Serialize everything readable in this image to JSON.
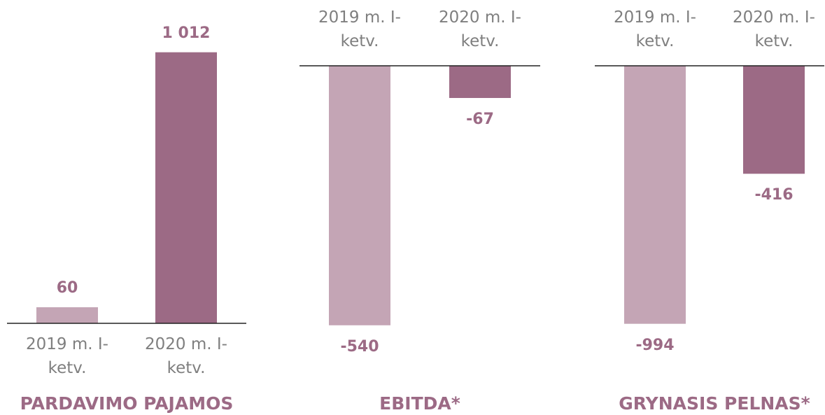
{
  "chart_data": [
    {
      "type": "bar",
      "title": "PARDAVIMO PAJAMOS",
      "categories": [
        "2019 m. I-ketv.",
        "2020 m. I-ketv."
      ],
      "values": [
        60,
        1012
      ],
      "value_labels": [
        "60",
        "1 012"
      ],
      "colors": [
        "#c4a5b5",
        "#9c6a85"
      ],
      "ylim": [
        0,
        1100
      ]
    },
    {
      "type": "bar",
      "title": "EBITDA*",
      "categories": [
        "2019 m. I-ketv.",
        "2020 m. I-ketv."
      ],
      "values": [
        -540,
        -67
      ],
      "colors": [
        "#c4a5b5",
        "#9c6a85"
      ],
      "ylim": [
        -600,
        0
      ]
    },
    {
      "type": "bar",
      "title": "GRYNASIS PELNAS*",
      "categories": [
        "2019 m. I-ketv.",
        "2020 m. I-ketv."
      ],
      "values": [
        -994,
        -416
      ],
      "colors": [
        "#c4a5b5",
        "#9c6a85"
      ],
      "ylim": [
        -1100,
        0
      ]
    }
  ]
}
